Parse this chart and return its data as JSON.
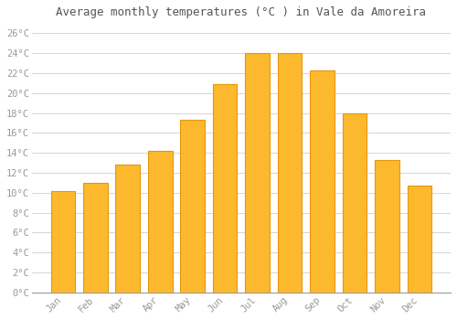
{
  "title": "Average monthly temperatures (°C ) in Vale da Amoreira",
  "months": [
    "Jan",
    "Feb",
    "Mar",
    "Apr",
    "May",
    "Jun",
    "Jul",
    "Aug",
    "Sep",
    "Oct",
    "Nov",
    "Dec"
  ],
  "values": [
    10.2,
    11.0,
    12.8,
    14.2,
    17.3,
    20.9,
    24.0,
    24.0,
    22.3,
    18.0,
    13.3,
    10.7
  ],
  "bar_color_face": "#FDB92E",
  "bar_color_edge": "#E8960A",
  "ylim": [
    0,
    27
  ],
  "background_color": "#ffffff",
  "grid_color": "#d0d0d0",
  "tick_label_color": "#999999",
  "title_color": "#555555",
  "title_fontsize": 9,
  "tick_fontsize": 7.5,
  "font_family": "monospace"
}
